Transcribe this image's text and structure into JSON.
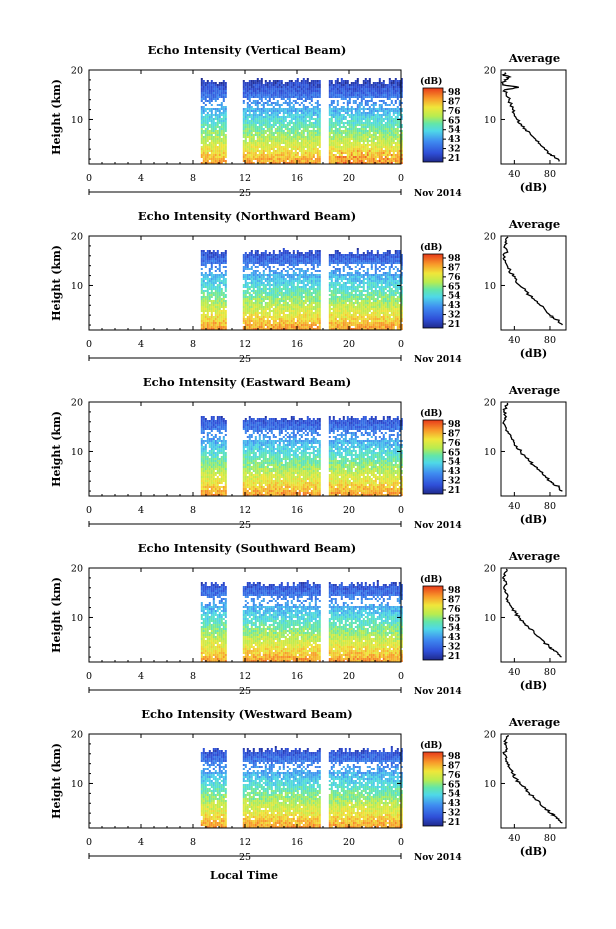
{
  "footer": {
    "local_time_label": "Local Time"
  },
  "chart_data": [
    {
      "type": "heatmap",
      "title": "Echo Intensity (Vertical Beam)",
      "ylabel": "Height (km)",
      "x_ticks": [
        "0",
        "4",
        "8",
        "12",
        "16",
        "20",
        "0"
      ],
      "xlim": [
        0,
        24
      ],
      "y_ticks": [
        "10",
        "20"
      ],
      "ylim": [
        1,
        20
      ],
      "date_day": "25",
      "date_label": "Nov 2014",
      "colorbar": {
        "unit": "(dB)",
        "labels": [
          "98",
          "87",
          "76",
          "65",
          "54",
          "43",
          "32",
          "21"
        ],
        "range": [
          21,
          98
        ]
      },
      "data_extent_hours": [
        8.6,
        24
      ],
      "gaps_hours": [
        [
          10.6,
          11.8
        ],
        [
          17.7,
          18.3
        ]
      ],
      "average_profile": {
        "title": "Average",
        "xlabel": "(dB)",
        "x_ticks": [
          "40",
          "80"
        ],
        "xlim": [
          25,
          98
        ],
        "y_ticks": [
          "10",
          "20"
        ],
        "ylim": [
          1,
          20
        ],
        "points": [
          [
            90,
            1.5
          ],
          [
            85,
            2.5
          ],
          [
            80,
            3
          ],
          [
            74,
            4
          ],
          [
            69,
            5
          ],
          [
            64,
            6
          ],
          [
            58,
            7
          ],
          [
            53,
            8
          ],
          [
            48,
            9
          ],
          [
            43,
            10
          ],
          [
            40,
            11
          ],
          [
            38,
            12
          ],
          [
            36,
            13
          ],
          [
            34,
            14
          ],
          [
            31,
            15
          ],
          [
            29,
            16
          ],
          [
            45,
            16.5
          ],
          [
            27,
            17
          ],
          [
            29,
            18
          ],
          [
            35,
            18.6
          ],
          [
            27,
            19
          ],
          [
            30,
            19.5
          ]
        ]
      }
    },
    {
      "type": "heatmap",
      "title": "Echo Intensity (Northward Beam)",
      "ylabel": "Height (km)",
      "x_ticks": [
        "0",
        "4",
        "8",
        "12",
        "16",
        "20",
        "0"
      ],
      "xlim": [
        0,
        24
      ],
      "y_ticks": [
        "10",
        "20"
      ],
      "ylim": [
        1,
        20
      ],
      "date_day": "25",
      "date_label": "Nov 2014",
      "colorbar": {
        "unit": "(dB)",
        "labels": [
          "98",
          "87",
          "76",
          "65",
          "54",
          "43",
          "32",
          "21"
        ],
        "range": [
          21,
          98
        ]
      },
      "data_extent_hours": [
        8.6,
        24
      ],
      "gaps_hours": [
        [
          10.6,
          11.8
        ],
        [
          17.7,
          18.3
        ]
      ],
      "average_profile": {
        "title": "Average",
        "xlabel": "(dB)",
        "x_ticks": [
          "40",
          "80"
        ],
        "xlim": [
          25,
          98
        ],
        "y_ticks": [
          "10",
          "20"
        ],
        "ylim": [
          1,
          20
        ],
        "points": [
          [
            94,
            2
          ],
          [
            90,
            2.8
          ],
          [
            84,
            3.5
          ],
          [
            80,
            4
          ],
          [
            75,
            5
          ],
          [
            69,
            6
          ],
          [
            63,
            7
          ],
          [
            57,
            8
          ],
          [
            52,
            9
          ],
          [
            46,
            10
          ],
          [
            42,
            11
          ],
          [
            38,
            12
          ],
          [
            35,
            13
          ],
          [
            32,
            14
          ],
          [
            30,
            15
          ],
          [
            28,
            16
          ],
          [
            32,
            17
          ],
          [
            29,
            18
          ],
          [
            31,
            19
          ],
          [
            33,
            19.8
          ]
        ]
      }
    },
    {
      "type": "heatmap",
      "title": "Echo Intensity (Eastward Beam)",
      "ylabel": "Height (km)",
      "x_ticks": [
        "0",
        "4",
        "8",
        "12",
        "16",
        "20",
        "0"
      ],
      "xlim": [
        0,
        24
      ],
      "y_ticks": [
        "10",
        "20"
      ],
      "ylim": [
        1,
        20
      ],
      "date_day": "25",
      "date_label": "Nov 2014",
      "colorbar": {
        "unit": "(dB)",
        "labels": [
          "98",
          "87",
          "76",
          "65",
          "54",
          "43",
          "32",
          "21"
        ],
        "range": [
          21,
          98
        ]
      },
      "data_extent_hours": [
        8.6,
        24
      ],
      "gaps_hours": [
        [
          10.6,
          11.8
        ],
        [
          17.7,
          18.3
        ]
      ],
      "average_profile": {
        "title": "Average",
        "xlabel": "(dB)",
        "x_ticks": [
          "40",
          "80"
        ],
        "xlim": [
          25,
          98
        ],
        "y_ticks": [
          "10",
          "20"
        ],
        "ylim": [
          1,
          20
        ],
        "points": [
          [
            94,
            2
          ],
          [
            90,
            2.8
          ],
          [
            84,
            3.5
          ],
          [
            80,
            4
          ],
          [
            75,
            5
          ],
          [
            69,
            6
          ],
          [
            63,
            7
          ],
          [
            57,
            8
          ],
          [
            52,
            9
          ],
          [
            47,
            10
          ],
          [
            43,
            11
          ],
          [
            39,
            12
          ],
          [
            36,
            13
          ],
          [
            33,
            14
          ],
          [
            30,
            15
          ],
          [
            28,
            16
          ],
          [
            31,
            17
          ],
          [
            28,
            18
          ],
          [
            30,
            19
          ],
          [
            32,
            19.8
          ]
        ]
      }
    },
    {
      "type": "heatmap",
      "title": "Echo Intensity (Southward Beam)",
      "ylabel": "Height (km)",
      "x_ticks": [
        "0",
        "4",
        "8",
        "12",
        "16",
        "20",
        "0"
      ],
      "xlim": [
        0,
        24
      ],
      "y_ticks": [
        "10",
        "20"
      ],
      "ylim": [
        1,
        20
      ],
      "date_day": "25",
      "date_label": "Nov 2014",
      "colorbar": {
        "unit": "(dB)",
        "labels": [
          "98",
          "87",
          "76",
          "65",
          "54",
          "43",
          "32",
          "21"
        ],
        "range": [
          21,
          98
        ]
      },
      "data_extent_hours": [
        8.6,
        24
      ],
      "gaps_hours": [
        [
          10.6,
          11.8
        ],
        [
          17.7,
          18.3
        ]
      ],
      "average_profile": {
        "title": "Average",
        "xlabel": "(dB)",
        "x_ticks": [
          "40",
          "80"
        ],
        "xlim": [
          25,
          98
        ],
        "y_ticks": [
          "10",
          "20"
        ],
        "ylim": [
          1,
          20
        ],
        "points": [
          [
            93,
            2
          ],
          [
            89,
            2.8
          ],
          [
            84,
            3.5
          ],
          [
            79,
            4
          ],
          [
            74,
            5
          ],
          [
            68,
            6
          ],
          [
            62,
            7
          ],
          [
            56,
            8
          ],
          [
            50,
            9
          ],
          [
            45,
            10
          ],
          [
            41,
            11
          ],
          [
            37,
            12
          ],
          [
            34,
            13
          ],
          [
            32,
            14
          ],
          [
            30,
            15
          ],
          [
            28,
            16
          ],
          [
            31,
            17
          ],
          [
            27,
            18
          ],
          [
            29,
            19
          ],
          [
            31,
            19.8
          ]
        ]
      }
    },
    {
      "type": "heatmap",
      "title": "Echo Intensity (Westward Beam)",
      "ylabel": "Height (km)",
      "x_ticks": [
        "0",
        "4",
        "8",
        "12",
        "16",
        "20",
        "0"
      ],
      "xlim": [
        0,
        24
      ],
      "y_ticks": [
        "10",
        "20"
      ],
      "ylim": [
        1,
        20
      ],
      "date_day": "25",
      "date_label": "Nov 2014",
      "colorbar": {
        "unit": "(dB)",
        "labels": [
          "98",
          "87",
          "76",
          "65",
          "54",
          "43",
          "32",
          "21"
        ],
        "range": [
          21,
          98
        ]
      },
      "data_extent_hours": [
        8.6,
        24
      ],
      "gaps_hours": [
        [
          10.6,
          11.8
        ],
        [
          17.7,
          18.3
        ]
      ],
      "average_profile": {
        "title": "Average",
        "xlabel": "(dB)",
        "x_ticks": [
          "40",
          "80"
        ],
        "xlim": [
          25,
          98
        ],
        "y_ticks": [
          "10",
          "20"
        ],
        "ylim": [
          1,
          20
        ],
        "points": [
          [
            94,
            2
          ],
          [
            90,
            2.8
          ],
          [
            85,
            3.5
          ],
          [
            80,
            4
          ],
          [
            75,
            5
          ],
          [
            69,
            6
          ],
          [
            63,
            7
          ],
          [
            57,
            8
          ],
          [
            52,
            9
          ],
          [
            46,
            10
          ],
          [
            42,
            11
          ],
          [
            38,
            12
          ],
          [
            35,
            13
          ],
          [
            32,
            14
          ],
          [
            30,
            15
          ],
          [
            28,
            16
          ],
          [
            32,
            17
          ],
          [
            29,
            18
          ],
          [
            31,
            19
          ],
          [
            33,
            19.8
          ]
        ]
      }
    }
  ]
}
